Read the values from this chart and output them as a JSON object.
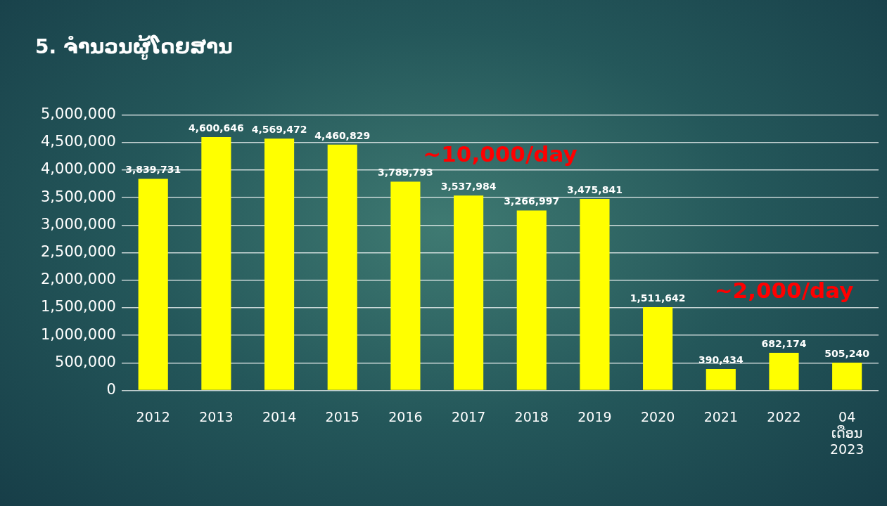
{
  "chart_data": {
    "type": "bar",
    "title": "5. ຈຳນວນຜູ້ໂດຍສານ",
    "categories": [
      "2012",
      "2013",
      "2014",
      "2015",
      "2016",
      "2017",
      "2018",
      "2019",
      "2020",
      "2021",
      "2022",
      "04\nເດືອນ\n2023"
    ],
    "values": [
      3839731,
      4600646,
      4569472,
      4460829,
      3789793,
      3537984,
      3266997,
      3475841,
      1511642,
      390434,
      682174,
      505240
    ],
    "value_labels": [
      "3,839,731",
      "4,600,646",
      "4,569,472",
      "4,460,829",
      "3,789,793",
      "3,537,984",
      "3,266,997",
      "3,475,841",
      "1,511,642",
      "390,434",
      "682,174",
      "505,240"
    ],
    "color": "#ffff00",
    "ylim": [
      0,
      5000000
    ],
    "yticks": [
      {
        "value": 0,
        "label": "0"
      },
      {
        "value": 500000,
        "label": "500,000"
      },
      {
        "value": 1000000,
        "label": "1,000,000"
      },
      {
        "value": 1500000,
        "label": "1,500,000"
      },
      {
        "value": 2000000,
        "label": "2,000,000"
      },
      {
        "value": 2500000,
        "label": "2,500,000"
      },
      {
        "value": 3000000,
        "label": "3,000,000"
      },
      {
        "value": 3500000,
        "label": "3,500,000"
      },
      {
        "value": 4000000,
        "label": "4,000,000"
      },
      {
        "value": 4500000,
        "label": "4,500,000"
      },
      {
        "value": 5000000,
        "label": "5,000,000"
      }
    ],
    "grid": "y",
    "legend": false,
    "annotations": [
      "~10,000/day",
      "~2,000/day"
    ]
  }
}
